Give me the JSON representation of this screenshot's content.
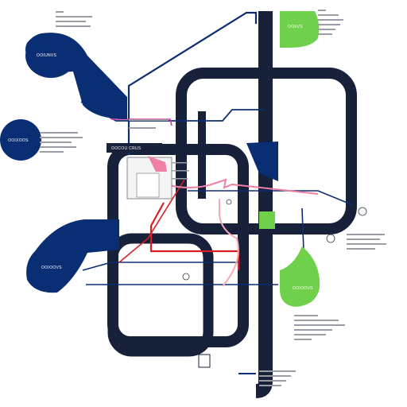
{
  "colors": {
    "track": "#17213a",
    "blue": "#0a2e73",
    "red": "#d81f26",
    "pink": "#f07fa8",
    "green": "#6fd04b",
    "text_gray": "#8c8f96"
  },
  "labels": {
    "blob_top_left": "OOIUNVS",
    "blob_mid_left": "OOIXOOS",
    "blob_bottom_left": "OOIOOVS",
    "green_top": "OOIIVS",
    "green_bottom": "OOIOOVS",
    "center_box": "OOCOU CRUS"
  }
}
